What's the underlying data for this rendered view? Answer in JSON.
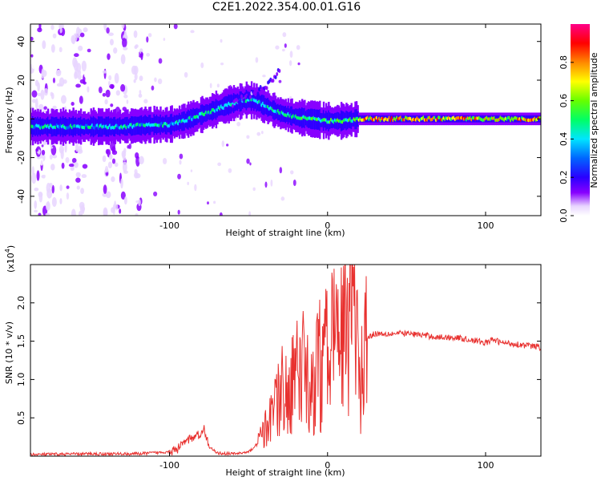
{
  "title": "C2E1.2022.354.00.01.G16",
  "chart_data": [
    {
      "type": "heatmap",
      "xlabel": "Height of straight line (km)",
      "ylabel": "Frequency (Hz)",
      "xlim": [
        -188,
        135
      ],
      "ylim": [
        -50,
        49
      ],
      "xticks": [
        -100,
        0,
        100
      ],
      "xtick_labels": [
        "-100",
        "0",
        "100"
      ],
      "yticks": [
        -40,
        -20,
        0,
        20,
        40
      ],
      "ytick_labels": [
        "-40",
        "-20",
        "0",
        "20",
        "40"
      ],
      "colorbar": {
        "label": "Normalized spectral amplitude",
        "range": [
          0,
          1
        ],
        "ticks": [
          0.0,
          0.2,
          0.4,
          0.6,
          0.8
        ],
        "tick_labels": [
          "0.0",
          "0.2",
          "0.4",
          "0.6",
          "0.8"
        ]
      },
      "ridge": {
        "x": [
          -188,
          -170,
          -150,
          -130,
          -110,
          -100,
          -90,
          -80,
          -70,
          -60,
          -50,
          -45,
          -40,
          -35,
          -30,
          -20,
          -10,
          0,
          10,
          20,
          40,
          60,
          80,
          100,
          120,
          135
        ],
        "y": [
          -4,
          -4,
          -4,
          -4,
          -3,
          -3,
          -1,
          2,
          5,
          8,
          10,
          9,
          7,
          5,
          3,
          1,
          0,
          -1,
          -1,
          0,
          0,
          0,
          0,
          0,
          0,
          0
        ]
      },
      "upper_branch": {
        "x": [
          -60,
          -50,
          -40,
          -35,
          -30
        ],
        "y": [
          8,
          12,
          16,
          20,
          25
        ]
      }
    },
    {
      "type": "line",
      "xlabel": "Height of straight line (km)",
      "ylabel": "SNR (10 * v/v)",
      "scale_label": "(x10^4)",
      "xlim": [
        -188,
        135
      ],
      "ylim": [
        0,
        2.5
      ],
      "xticks": [
        -100,
        0,
        100
      ],
      "xtick_labels": [
        "-100",
        "0",
        "100"
      ],
      "yticks": [
        0.5,
        1.0,
        1.5,
        2.0
      ],
      "ytick_labels": [
        "0.5",
        "1.0",
        "1.5",
        "2.0"
      ],
      "color": "#e8312f",
      "series": [
        {
          "x": [
            -188,
            -150,
            -120,
            -105,
            -95,
            -90,
            -85,
            -80,
            -78,
            -75,
            -70,
            -60,
            -50,
            -45,
            -40,
            -35,
            -30,
            -25,
            -20,
            -15,
            -10,
            -5,
            0,
            5,
            10,
            15,
            20,
            25,
            30,
            40,
            50,
            60,
            70,
            80,
            90,
            95,
            100,
            105,
            110,
            120,
            135
          ],
          "y": [
            0.02,
            0.03,
            0.03,
            0.05,
            0.08,
            0.2,
            0.25,
            0.3,
            0.35,
            0.12,
            0.04,
            0.03,
            0.05,
            0.15,
            0.3,
            0.6,
            0.8,
            0.9,
            1.0,
            1.1,
            1.0,
            1.2,
            1.3,
            1.5,
            1.6,
            2.2,
            1.0,
            1.55,
            1.6,
            1.6,
            1.6,
            1.58,
            1.55,
            1.55,
            1.52,
            1.5,
            1.48,
            1.52,
            1.48,
            1.46,
            1.42
          ]
        }
      ]
    }
  ]
}
